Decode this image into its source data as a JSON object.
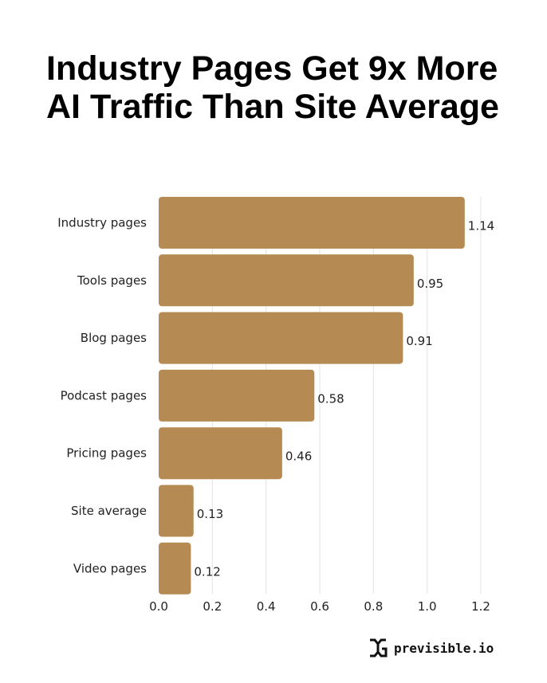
{
  "chart_data": {
    "type": "bar",
    "orientation": "horizontal",
    "title": "Industry Pages Get 9x More AI Traffic Than Site Average",
    "categories": [
      "Industry pages",
      "Tools pages",
      "Blog pages",
      "Podcast pages",
      "Pricing pages",
      "Site average",
      "Video pages"
    ],
    "values": [
      1.14,
      0.95,
      0.91,
      0.58,
      0.46,
      0.13,
      0.12
    ],
    "data_labels": [
      "1.14",
      "0.95",
      "0.91",
      "0.58",
      "0.46",
      "0.13",
      "0.12"
    ],
    "xlim": [
      0,
      1.2
    ],
    "xticks": [
      "0.0",
      "0.2",
      "0.4",
      "0.6",
      "0.8",
      "1.0",
      "1.2"
    ],
    "xlabel": "",
    "ylabel": "",
    "grid": "vertical",
    "bar_color": "#b58b53"
  },
  "brand": {
    "name": "previsible.io"
  }
}
